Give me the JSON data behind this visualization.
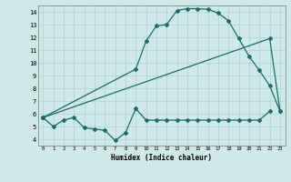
{
  "title": "",
  "xlabel": "Humidex (Indice chaleur)",
  "ylabel": "",
  "bg_color": "#cfe8e8",
  "grid_color": "#aacccc",
  "line_color": "#1a6b6b",
  "marker": "D",
  "markersize": 2.0,
  "linewidth": 0.9,
  "xlim": [
    -0.5,
    23.5
  ],
  "ylim": [
    3.5,
    14.5
  ],
  "xticks": [
    0,
    1,
    2,
    3,
    4,
    5,
    6,
    7,
    8,
    9,
    10,
    11,
    12,
    13,
    14,
    15,
    16,
    17,
    18,
    19,
    20,
    21,
    22,
    23
  ],
  "yticks": [
    4,
    5,
    6,
    7,
    8,
    9,
    10,
    11,
    12,
    13,
    14
  ],
  "series1": [
    [
      0,
      5.7
    ],
    [
      1,
      5.0
    ],
    [
      2,
      5.5
    ],
    [
      3,
      5.7
    ],
    [
      4,
      4.9
    ],
    [
      5,
      4.8
    ],
    [
      6,
      4.7
    ],
    [
      7,
      3.9
    ],
    [
      8,
      4.5
    ],
    [
      9,
      6.4
    ],
    [
      10,
      5.5
    ],
    [
      11,
      5.5
    ],
    [
      12,
      5.5
    ],
    [
      13,
      5.5
    ],
    [
      14,
      5.5
    ],
    [
      15,
      5.5
    ],
    [
      16,
      5.5
    ],
    [
      17,
      5.5
    ],
    [
      18,
      5.5
    ],
    [
      19,
      5.5
    ],
    [
      20,
      5.5
    ],
    [
      21,
      5.5
    ],
    [
      22,
      6.2
    ]
  ],
  "series2": [
    [
      0,
      5.7
    ],
    [
      9,
      9.5
    ],
    [
      10,
      11.7
    ],
    [
      11,
      12.9
    ],
    [
      12,
      13.0
    ],
    [
      13,
      14.1
    ],
    [
      14,
      14.25
    ],
    [
      15,
      14.25
    ],
    [
      16,
      14.2
    ],
    [
      17,
      13.9
    ],
    [
      18,
      13.3
    ],
    [
      19,
      11.9
    ],
    [
      20,
      10.5
    ],
    [
      21,
      9.4
    ],
    [
      22,
      8.2
    ],
    [
      23,
      6.2
    ]
  ],
  "series3": [
    [
      0,
      5.7
    ],
    [
      22,
      11.9
    ],
    [
      23,
      6.2
    ]
  ]
}
